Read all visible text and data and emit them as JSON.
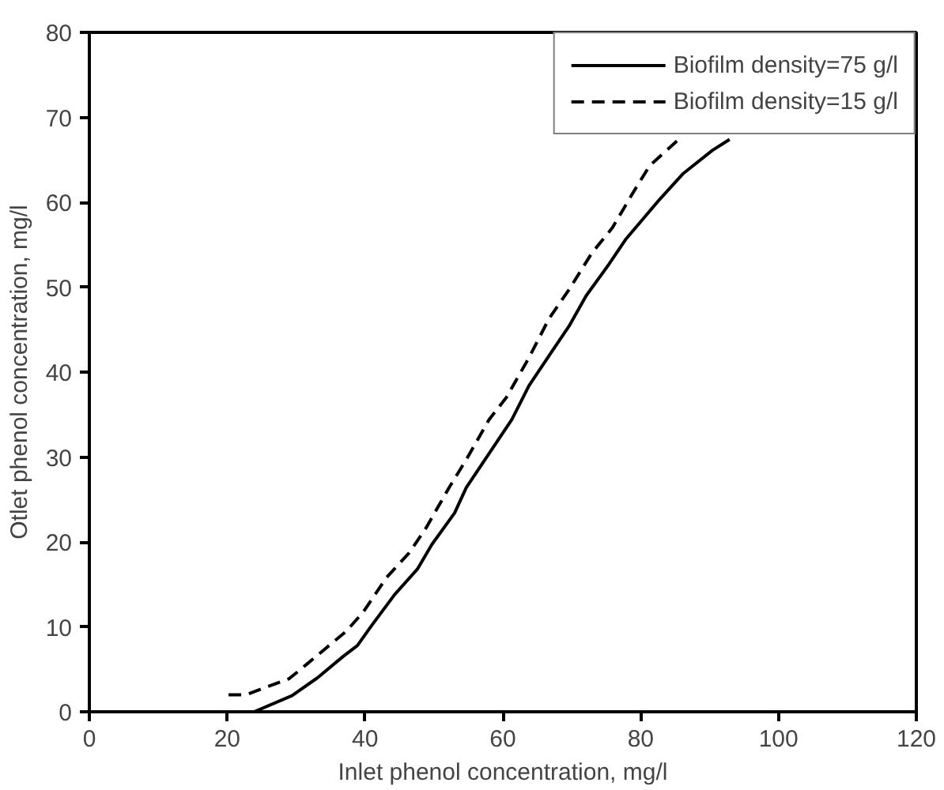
{
  "chart_data": {
    "type": "line",
    "xlabel": "Inlet phenol concentration, mg/l",
    "ylabel": "Otlet phenol concentration, mg/l",
    "xlim": [
      0,
      120
    ],
    "ylim": [
      0,
      80
    ],
    "xticks": [
      0,
      20,
      40,
      60,
      80,
      100,
      120
    ],
    "yticks": [
      0,
      10,
      20,
      30,
      40,
      50,
      60,
      70,
      80
    ],
    "grid": false,
    "legend": "top right",
    "series": [
      {
        "name": "Biofilm density=75 g/l",
        "color": "#000000",
        "line_style": "solid",
        "x": [
          20.2,
          23.9,
          29.4,
          33.1,
          36.8,
          38.9,
          41.0,
          44.3,
          47.6,
          49.7,
          53.0,
          54.7,
          58.0,
          61.3,
          63.8,
          67.1,
          69.6,
          72.1,
          75.4,
          77.9,
          82.5,
          86.2,
          90.4,
          92.9
        ],
        "values": [
          0,
          0,
          1.9,
          4.0,
          6.5,
          7.8,
          10.2,
          13.8,
          16.8,
          19.7,
          23.4,
          26.4,
          30.4,
          34.4,
          38.4,
          42.4,
          45.4,
          49.0,
          52.7,
          55.7,
          60.1,
          63.4,
          66.1,
          67.4
        ]
      },
      {
        "name": "Biofilm density=15 g/l",
        "color": "#000000",
        "line_style": "dashed",
        "x": [
          20.2,
          22.7,
          29.0,
          31.4,
          37.3,
          39.8,
          43.1,
          46.4,
          48.9,
          52.2,
          54.7,
          58.0,
          60.5,
          63.8,
          66.7,
          69.6,
          72.9,
          75.9,
          78.8,
          81.3,
          85.4
        ],
        "values": [
          2.0,
          2.0,
          3.9,
          5.5,
          9.5,
          11.8,
          15.8,
          18.7,
          21.7,
          26.4,
          29.7,
          34.4,
          37.0,
          41.7,
          46.3,
          49.7,
          54.0,
          57.0,
          61.0,
          64.3,
          67.3
        ]
      }
    ]
  }
}
